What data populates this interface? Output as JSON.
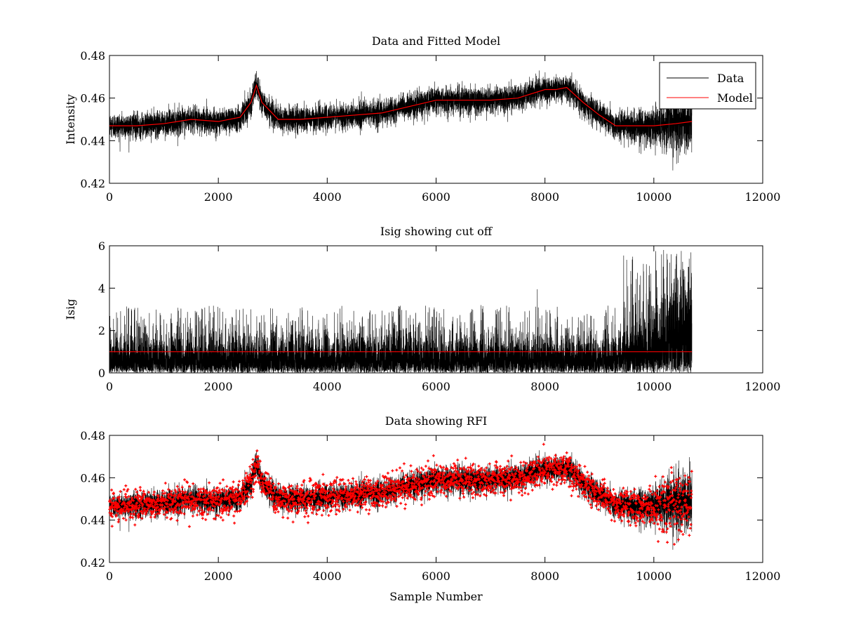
{
  "chart_data": [
    {
      "type": "line",
      "title": "Data and Fitted Model",
      "xlabel": "",
      "ylabel": "Intensity",
      "xlim": [
        0,
        12000
      ],
      "ylim": [
        0.42,
        0.48
      ],
      "xticks": [
        0,
        2000,
        4000,
        6000,
        8000,
        10000,
        12000
      ],
      "xtick_labels": [
        "0",
        "2000",
        "4000",
        "6000",
        "8000",
        "10000",
        "12000"
      ],
      "yticks": [
        0.42,
        0.44,
        0.46,
        0.48
      ],
      "ytick_labels": [
        "0.42",
        "0.44",
        "0.46",
        "0.48"
      ],
      "legend_position": "top-right",
      "series": [
        {
          "name": "Data",
          "color": "#000000",
          "style": "noisy-line",
          "x": [
            0,
            500,
            1000,
            1500,
            2000,
            2400,
            2600,
            2700,
            2800,
            3100,
            3500,
            4000,
            4500,
            5000,
            5500,
            6000,
            6500,
            7000,
            7500,
            8000,
            8200,
            8400,
            8700,
            9000,
            9300,
            9600,
            10000,
            10400,
            10700
          ],
          "center": [
            0.447,
            0.447,
            0.448,
            0.45,
            0.449,
            0.451,
            0.458,
            0.466,
            0.458,
            0.45,
            0.45,
            0.451,
            0.452,
            0.453,
            0.456,
            0.459,
            0.459,
            0.459,
            0.46,
            0.464,
            0.464,
            0.465,
            0.458,
            0.452,
            0.447,
            0.447,
            0.447,
            0.448,
            0.449
          ],
          "spread": [
            0.005,
            0.005,
            0.005,
            0.005,
            0.005,
            0.005,
            0.005,
            0.005,
            0.005,
            0.005,
            0.005,
            0.005,
            0.005,
            0.005,
            0.005,
            0.005,
            0.005,
            0.005,
            0.005,
            0.005,
            0.005,
            0.005,
            0.005,
            0.005,
            0.005,
            0.006,
            0.008,
            0.011,
            0.012
          ],
          "n_samples": 10700
        },
        {
          "name": "Model",
          "color": "#ff0000",
          "style": "line",
          "x": [
            0,
            500,
            1000,
            1500,
            2000,
            2400,
            2600,
            2700,
            2800,
            3100,
            3500,
            4000,
            4500,
            5000,
            5500,
            6000,
            6500,
            7000,
            7500,
            8000,
            8200,
            8400,
            8700,
            9000,
            9300,
            9600,
            10000,
            10400,
            10700
          ],
          "values": [
            0.447,
            0.447,
            0.448,
            0.45,
            0.449,
            0.451,
            0.458,
            0.466,
            0.458,
            0.45,
            0.45,
            0.451,
            0.452,
            0.453,
            0.456,
            0.459,
            0.459,
            0.459,
            0.46,
            0.464,
            0.464,
            0.465,
            0.458,
            0.452,
            0.447,
            0.447,
            0.447,
            0.448,
            0.449
          ]
        }
      ]
    },
    {
      "type": "line",
      "title": "Isig showing cut off",
      "xlabel": "",
      "ylabel": "Isig",
      "xlim": [
        0,
        12000
      ],
      "ylim": [
        0,
        6
      ],
      "xticks": [
        0,
        2000,
        4000,
        6000,
        8000,
        10000,
        12000
      ],
      "xtick_labels": [
        "0",
        "2000",
        "4000",
        "6000",
        "8000",
        "10000",
        "12000"
      ],
      "yticks": [
        0,
        2,
        4,
        6
      ],
      "ytick_labels": [
        "0",
        "2",
        "4",
        "6"
      ],
      "series": [
        {
          "name": "Isig",
          "color": "#000000",
          "style": "spiky",
          "x_range": [
            0,
            10700
          ],
          "n_samples": 10700,
          "typical_max": 2.0,
          "peak_max": 5.8
        },
        {
          "name": "Cut off",
          "color": "#ff0000",
          "style": "line",
          "x": [
            0,
            10700
          ],
          "values": [
            1.0,
            1.0
          ]
        }
      ]
    },
    {
      "type": "line",
      "title": "Data showing RFI",
      "xlabel": "Sample Number",
      "ylabel": "",
      "xlim": [
        0,
        12000
      ],
      "ylim": [
        0.42,
        0.48
      ],
      "xticks": [
        0,
        2000,
        4000,
        6000,
        8000,
        10000,
        12000
      ],
      "xtick_labels": [
        "0",
        "2000",
        "4000",
        "6000",
        "8000",
        "10000",
        "12000"
      ],
      "yticks": [
        0.42,
        0.44,
        0.46,
        0.48
      ],
      "ytick_labels": [
        "0.42",
        "0.44",
        "0.46",
        "0.48"
      ],
      "series": [
        {
          "name": "Data",
          "color": "#000000",
          "style": "noisy-line"
        },
        {
          "name": "RFI",
          "color": "#ff0000",
          "style": "markers"
        }
      ]
    }
  ]
}
